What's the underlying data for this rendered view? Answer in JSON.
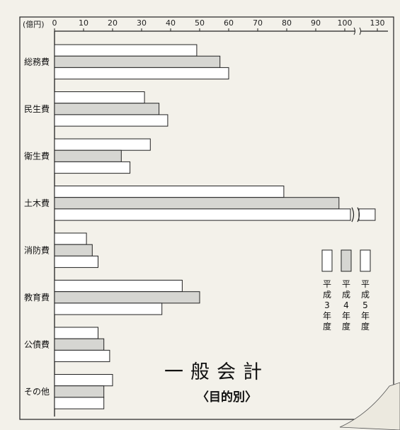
{
  "chart_data": {
    "type": "bar",
    "orientation": "horizontal",
    "unit_label": "(億円)",
    "x_ticks": [
      0,
      10,
      20,
      30,
      40,
      50,
      60,
      70,
      80,
      90,
      100,
      130
    ],
    "axis_break_between": [
      100,
      130
    ],
    "categories": [
      "総務費",
      "民生費",
      "衛生費",
      "土木費",
      "消防費",
      "教育費",
      "公債費",
      "その他"
    ],
    "series": [
      {
        "name": "平成3年度",
        "color": "#ffffff",
        "values": [
          49,
          31,
          33,
          79,
          11,
          44,
          15,
          20
        ]
      },
      {
        "name": "平成4年度",
        "color": "#d6d6d2",
        "values": [
          57,
          36,
          23,
          98,
          13,
          50,
          17,
          17
        ]
      },
      {
        "name": "平成5年度",
        "color": "#ffffff",
        "values": [
          60,
          39,
          26,
          128,
          15,
          37,
          19,
          17
        ]
      }
    ],
    "title": "一般会計",
    "subtitle": "〈目的別〉",
    "legend_position": "right"
  }
}
